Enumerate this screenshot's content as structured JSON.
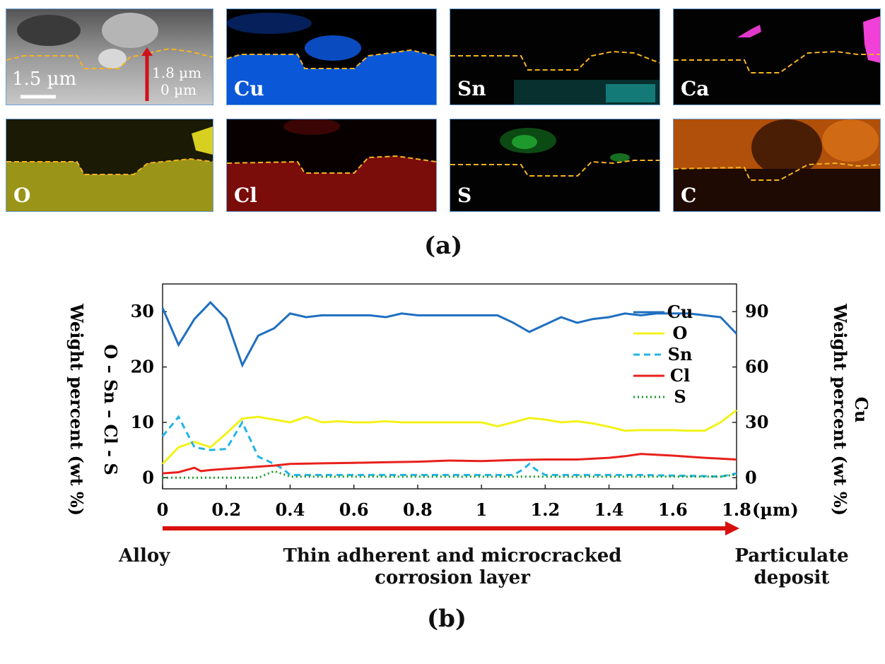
{
  "maps": {
    "tiles": [
      {
        "label": "",
        "bg": "#8a8a8a"
      },
      {
        "label": "Cu",
        "bg": "#0b2a6b"
      },
      {
        "label": "Sn",
        "bg": "#030303"
      },
      {
        "label": "Ca",
        "bg": "#030303"
      },
      {
        "label": "O",
        "bg": "#2c2a05"
      },
      {
        "label": "Cl",
        "bg": "#1c0303"
      },
      {
        "label": "S",
        "bg": "#030303"
      },
      {
        "label": "C",
        "bg": "#3a1a05"
      }
    ],
    "scale_bar": "1.5 µm",
    "arrow_top": "1.8 µm",
    "arrow_bottom": "0 µm",
    "boundary_color": "#f5b323"
  },
  "figure_labels": {
    "a": "(a)",
    "b": "(b)"
  },
  "captions": {
    "left": "Alloy",
    "middle_line1": "Thin adherent and microcracked",
    "middle_line2": "corrosion layer",
    "right_line1": "Particulate",
    "right_line2": "deposit"
  },
  "chart_data": {
    "type": "line",
    "ylabel_left_line1": "O – Sn – Cl - S",
    "ylabel_left_line2": "Weight percent (wt %)",
    "ylabel_right_line1": "Cu",
    "ylabel_right_line2": "Weight percent (wt %)",
    "xunit": "(µm)",
    "xlim": [
      0,
      1.8
    ],
    "ylim_left": [
      -2,
      35
    ],
    "ylim_right": [
      -6,
      105
    ],
    "x_ticks": [
      "0",
      "0.2",
      "0.4",
      "0.6",
      "0.8",
      "1",
      "1.2",
      "1.4",
      "1.6",
      "1.8"
    ],
    "y_ticks_left": [
      "0",
      "10",
      "20",
      "30"
    ],
    "y_ticks_right": [
      "0",
      "30",
      "60",
      "90"
    ],
    "legend_position": "right",
    "series": [
      {
        "name": "Cu",
        "axis": "right",
        "color": "#1f6fc0",
        "dash": "",
        "x": [
          0,
          0.05,
          0.1,
          0.15,
          0.2,
          0.25,
          0.3,
          0.35,
          0.4,
          0.45,
          0.5,
          0.55,
          0.6,
          0.65,
          0.7,
          0.75,
          0.8,
          0.85,
          0.9,
          0.95,
          1.0,
          1.05,
          1.1,
          1.15,
          1.2,
          1.25,
          1.3,
          1.35,
          1.4,
          1.45,
          1.5,
          1.55,
          1.6,
          1.65,
          1.7,
          1.75,
          1.8
        ],
        "y": [
          92,
          72,
          86,
          95,
          86,
          61,
          77,
          81,
          89,
          87,
          88,
          88,
          88,
          88,
          87,
          89,
          88,
          88,
          88,
          88,
          88,
          88,
          84,
          79,
          83,
          87,
          84,
          86,
          87,
          89,
          88,
          89,
          89,
          89,
          88,
          87,
          78
        ]
      },
      {
        "name": "O",
        "axis": "left",
        "color": "#f2f21a",
        "dash": "",
        "x": [
          0,
          0.05,
          0.1,
          0.15,
          0.2,
          0.25,
          0.3,
          0.35,
          0.4,
          0.45,
          0.5,
          0.55,
          0.6,
          0.65,
          0.7,
          0.75,
          0.8,
          0.85,
          0.9,
          0.95,
          1.0,
          1.05,
          1.1,
          1.15,
          1.2,
          1.25,
          1.3,
          1.35,
          1.4,
          1.45,
          1.5,
          1.55,
          1.6,
          1.65,
          1.7,
          1.75,
          1.8
        ],
        "y": [
          2.5,
          5.5,
          6.5,
          5.5,
          8,
          10.7,
          11,
          10.5,
          10,
          11,
          10,
          10.2,
          10,
          10,
          10.2,
          10,
          10,
          10,
          10,
          10,
          10,
          9.3,
          10,
          10.8,
          10.5,
          10,
          10.2,
          9.8,
          9.2,
          8.5,
          8.6,
          8.6,
          8.6,
          8.5,
          8.5,
          10,
          12.2
        ]
      },
      {
        "name": "Sn",
        "axis": "left",
        "color": "#25b4e3",
        "dash": "9 6",
        "x": [
          0,
          0.05,
          0.1,
          0.15,
          0.2,
          0.25,
          0.3,
          0.35,
          0.38,
          0.4,
          0.5,
          0.6,
          0.7,
          0.8,
          0.9,
          1.0,
          1.1,
          1.13,
          1.15,
          1.17,
          1.2,
          1.3,
          1.4,
          1.5,
          1.6,
          1.7,
          1.75,
          1.8
        ],
        "y": [
          7.5,
          11,
          5.5,
          5,
          5.2,
          10,
          3.8,
          2.5,
          1.5,
          0.5,
          0.5,
          0.5,
          0.5,
          0.5,
          0.5,
          0.5,
          0.5,
          1.5,
          2.5,
          1.5,
          0.5,
          0.5,
          0.5,
          0.5,
          0.4,
          0.3,
          0.2,
          0.8
        ]
      },
      {
        "name": "Cl",
        "axis": "left",
        "color": "#e8201c",
        "dash": "",
        "x": [
          0,
          0.05,
          0.1,
          0.12,
          0.15,
          0.2,
          0.25,
          0.3,
          0.35,
          0.4,
          0.5,
          0.6,
          0.7,
          0.8,
          0.9,
          1.0,
          1.1,
          1.2,
          1.3,
          1.4,
          1.45,
          1.5,
          1.6,
          1.7,
          1.8
        ],
        "y": [
          0.8,
          1.0,
          1.8,
          1.2,
          1.4,
          1.6,
          1.8,
          2.0,
          2.2,
          2.5,
          2.6,
          2.7,
          2.8,
          2.9,
          3.1,
          3.0,
          3.2,
          3.3,
          3.3,
          3.6,
          3.9,
          4.3,
          4.0,
          3.6,
          3.3
        ]
      },
      {
        "name": "S",
        "axis": "left",
        "color": "#1a9a2a",
        "dash": "2 4",
        "x": [
          0,
          0.1,
          0.2,
          0.3,
          0.35,
          0.38,
          0.4,
          0.5,
          0.6,
          0.8,
          1.0,
          1.2,
          1.4,
          1.6,
          1.75,
          1.8
        ],
        "y": [
          0,
          0,
          0,
          0,
          1.2,
          0.6,
          0.2,
          0.2,
          0.2,
          0.2,
          0.2,
          0.2,
          0.2,
          0.2,
          0.2,
          0.6
        ]
      }
    ]
  }
}
